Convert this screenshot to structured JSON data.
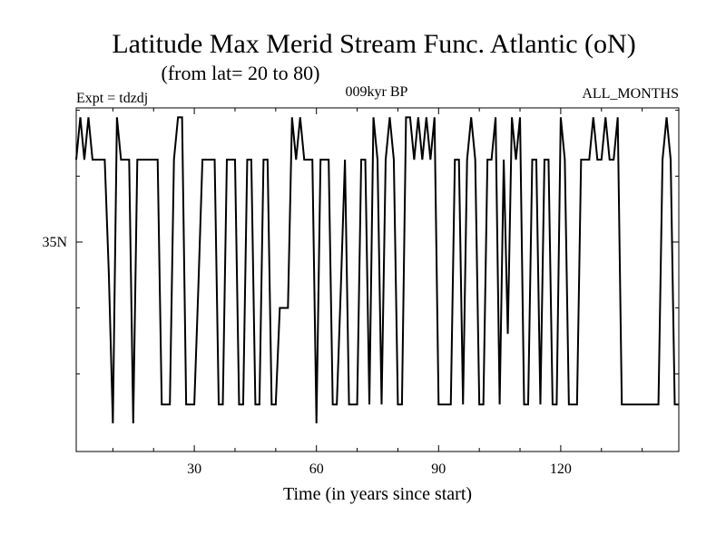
{
  "chart_data": {
    "type": "line",
    "title": "Latitude Max Merid Stream Func. Atlantic (oN)",
    "subtitle": "(from lat= 20 to 80)",
    "left_label": "Expt = tdzdj",
    "center_label": "009kyr BP",
    "right_label": "ALL_MONTHS",
    "xlabel": "Time (in years since start)",
    "ylabel": "",
    "xlim": [
      1,
      149
    ],
    "ylim": [
      26.1,
      40.7
    ],
    "x_ticks": [
      30,
      60,
      90,
      120
    ],
    "x_tick_labels": [
      "30",
      "60",
      "90",
      "120"
    ],
    "x_minor_ticks": [
      10,
      20,
      40,
      50,
      70,
      80,
      100,
      110,
      130,
      140
    ],
    "y_ticks": [
      35
    ],
    "y_tick_labels": [
      "35N"
    ],
    "y_minor_ticks": [
      29.4,
      32.2,
      37.8,
      40.6
    ],
    "series": [
      {
        "x": [
          1,
          2,
          3,
          4,
          5,
          6,
          7,
          8,
          9,
          10,
          11,
          12,
          13,
          14,
          15,
          16,
          17,
          18,
          19,
          20,
          21,
          22,
          23,
          24,
          25,
          26,
          27,
          28,
          29,
          30,
          31,
          32,
          33,
          34,
          35,
          36,
          37,
          38,
          39,
          40,
          41,
          42,
          43,
          44,
          45,
          46,
          47,
          48,
          49,
          50,
          51,
          52,
          53,
          54,
          55,
          56,
          57,
          58,
          59,
          60,
          61,
          62,
          63,
          64,
          65,
          66,
          67,
          68,
          69,
          70,
          71,
          72,
          73,
          74,
          75,
          76,
          77,
          78,
          79,
          80,
          81,
          82,
          83,
          84,
          85,
          86,
          87,
          88,
          89,
          90,
          91,
          92,
          93,
          94,
          95,
          96,
          97,
          98,
          99,
          100,
          101,
          102,
          103,
          104,
          105,
          106,
          107,
          108,
          109,
          110,
          111,
          112,
          113,
          114,
          115,
          116,
          117,
          118,
          119,
          120,
          121,
          122,
          123,
          124,
          125,
          126,
          127,
          128,
          129,
          130,
          131,
          132,
          133,
          134,
          135,
          136,
          137,
          138,
          139,
          140,
          141,
          142,
          143,
          144,
          145,
          146,
          147,
          148,
          149
        ],
        "y": [
          38.5,
          40.3,
          38.5,
          40.3,
          38.5,
          38.5,
          38.5,
          38.5,
          33.7,
          27.3,
          40.3,
          38.5,
          38.5,
          38.5,
          27.3,
          38.5,
          38.5,
          38.5,
          38.5,
          38.5,
          38.5,
          28.1,
          28.1,
          28.1,
          38.5,
          40.3,
          40.3,
          28.1,
          28.1,
          28.1,
          33.1,
          38.5,
          38.5,
          38.5,
          38.5,
          28.1,
          28.1,
          38.5,
          38.5,
          38.5,
          28.1,
          28.1,
          38.5,
          38.5,
          28.1,
          28.1,
          38.5,
          38.5,
          28.1,
          28.1,
          32.2,
          32.2,
          32.2,
          40.3,
          38.5,
          40.3,
          38.5,
          38.5,
          38.5,
          27.3,
          38.5,
          38.5,
          38.5,
          28.1,
          28.1,
          33.1,
          38.5,
          28.1,
          28.1,
          28.1,
          38.5,
          38.5,
          28.1,
          40.3,
          38.5,
          28.1,
          38.5,
          40.3,
          38.5,
          28.1,
          28.1,
          40.3,
          40.3,
          38.5,
          40.3,
          38.5,
          40.3,
          38.5,
          40.3,
          28.1,
          28.1,
          28.1,
          28.1,
          38.5,
          38.5,
          28.1,
          38.5,
          40.3,
          38.5,
          28.1,
          28.1,
          38.5,
          38.5,
          40.3,
          28.1,
          38.5,
          31.1,
          40.3,
          38.5,
          40.3,
          28.1,
          28.1,
          38.5,
          38.5,
          28.1,
          38.5,
          38.5,
          28.1,
          28.1,
          40.3,
          38.5,
          28.1,
          28.1,
          28.1,
          38.5,
          38.5,
          38.5,
          40.3,
          38.5,
          38.5,
          40.3,
          38.5,
          38.5,
          40.3,
          28.1,
          28.1,
          28.1,
          28.1,
          28.1,
          28.1,
          28.1,
          28.1,
          28.1,
          28.1,
          38.5,
          40.3,
          38.5,
          28.1,
          28.1
        ]
      }
    ]
  }
}
